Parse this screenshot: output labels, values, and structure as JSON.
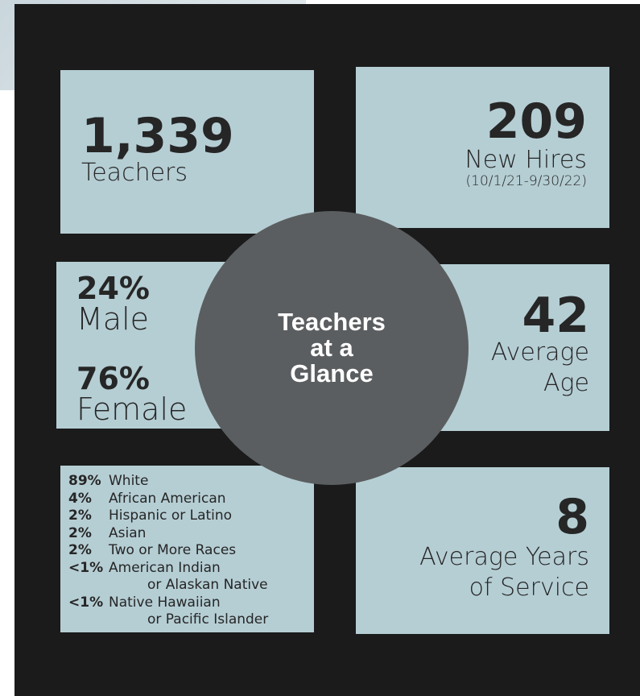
{
  "title": "Teachers at a Glance",
  "teachers": {
    "value": "1,339",
    "label": "Teachers"
  },
  "new_hires": {
    "value": "209",
    "label": "New Hires",
    "note": "(10/1/21-9/30/22)"
  },
  "gender": [
    {
      "value": "24%",
      "label": "Male"
    },
    {
      "value": "76%",
      "label": "Female"
    }
  ],
  "age": {
    "value": "42",
    "lines": [
      "Average",
      "Age"
    ]
  },
  "service": {
    "value": "8",
    "lines": [
      "Average Years",
      "of Service"
    ]
  },
  "ethnicity": [
    {
      "pct": "89%",
      "lines": [
        "White"
      ]
    },
    {
      "pct": "4%",
      "lines": [
        "African American"
      ]
    },
    {
      "pct": "2%",
      "lines": [
        "Hispanic or Latino"
      ]
    },
    {
      "pct": "2%",
      "lines": [
        "Asian"
      ]
    },
    {
      "pct": "2%",
      "lines": [
        "Two or More Races"
      ]
    },
    {
      "pct": "<1%",
      "lines": [
        "American Indian",
        "or Alaskan Native"
      ]
    },
    {
      "pct": "<1%",
      "lines": [
        "Native Hawaiian",
        "or Pacific Islander"
      ]
    }
  ]
}
